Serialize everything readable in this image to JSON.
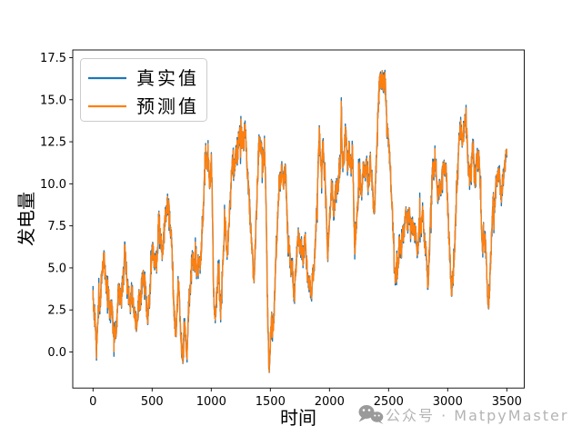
{
  "figure": {
    "background": "#ffffff"
  },
  "chart_data": {
    "type": "line",
    "title": "",
    "xlabel": "时间",
    "ylabel": "发电量",
    "x_ticks": [
      0,
      500,
      1000,
      1500,
      2000,
      2500,
      3000,
      3500
    ],
    "y_tick_labels": [
      "0.0",
      "2.5",
      "5.0",
      "7.5",
      "10.0",
      "12.5",
      "15.0",
      "17.5"
    ],
    "xlim": [
      -171,
      3644
    ],
    "ylim": [
      -2.16,
      17.96
    ],
    "grid": false,
    "legend_position": "upper left",
    "n_points": 3501,
    "series": [
      {
        "name": "真实值",
        "color": "#1f77b4"
      },
      {
        "name": "预测值",
        "color": "#ff7f0e"
      }
    ],
    "generator": {
      "seed": 11,
      "smooth_amp": 0.8,
      "fast_amp": 0.8,
      "spike_prob": 0.07,
      "spike_factor": 2.2,
      "pred_shrink": 0.8,
      "pred_noise": 0.1,
      "ma_window": 9,
      "clip_min": -1.3,
      "clip_max": 17.35
    },
    "trend_keyframes": [
      [
        0,
        3.8
      ],
      [
        15,
        2.6
      ],
      [
        30,
        0.4
      ],
      [
        45,
        2.2
      ],
      [
        60,
        3.4
      ],
      [
        75,
        4.8
      ],
      [
        90,
        5.2
      ],
      [
        105,
        3.6
      ],
      [
        120,
        4.4
      ],
      [
        135,
        3.2
      ],
      [
        150,
        2.6
      ],
      [
        165,
        2.2
      ],
      [
        180,
        1.8
      ],
      [
        195,
        1.4
      ],
      [
        210,
        2.8
      ],
      [
        225,
        3.4
      ],
      [
        240,
        3.2
      ],
      [
        255,
        4.0
      ],
      [
        270,
        5.6
      ],
      [
        285,
        4.6
      ],
      [
        300,
        3.8
      ],
      [
        315,
        2.8
      ],
      [
        330,
        3.4
      ],
      [
        345,
        3.0
      ],
      [
        360,
        2.0
      ],
      [
        375,
        1.4
      ],
      [
        390,
        2.4
      ],
      [
        405,
        3.4
      ],
      [
        420,
        4.6
      ],
      [
        435,
        4.0
      ],
      [
        450,
        3.2
      ],
      [
        465,
        2.6
      ],
      [
        480,
        3.6
      ],
      [
        495,
        5.0
      ],
      [
        510,
        6.0
      ],
      [
        525,
        5.4
      ],
      [
        540,
        5.0
      ],
      [
        555,
        6.8
      ],
      [
        570,
        7.2
      ],
      [
        585,
        6.2
      ],
      [
        600,
        7.4
      ],
      [
        615,
        8.0
      ],
      [
        630,
        9.4
      ],
      [
        645,
        8.6
      ],
      [
        660,
        6.4
      ],
      [
        675,
        4.2
      ],
      [
        690,
        1.8
      ],
      [
        700,
        0.8
      ],
      [
        710,
        2.4
      ],
      [
        720,
        3.6
      ],
      [
        730,
        3.2
      ],
      [
        740,
        2.2
      ],
      [
        750,
        0.6
      ],
      [
        760,
        0.0
      ],
      [
        770,
        1.8
      ],
      [
        780,
        0.6
      ],
      [
        790,
        -0.3
      ],
      [
        800,
        1.4
      ],
      [
        810,
        2.8
      ],
      [
        825,
        3.8
      ],
      [
        840,
        4.8
      ],
      [
        855,
        5.6
      ],
      [
        870,
        5.8
      ],
      [
        885,
        4.8
      ],
      [
        900,
        5.4
      ],
      [
        915,
        6.6
      ],
      [
        930,
        8.4
      ],
      [
        945,
        10.6
      ],
      [
        960,
        11.6
      ],
      [
        975,
        11.2
      ],
      [
        990,
        9.8
      ],
      [
        1000,
        11.0
      ],
      [
        1010,
        8.0
      ],
      [
        1020,
        4.0
      ],
      [
        1030,
        2.6
      ],
      [
        1040,
        3.0
      ],
      [
        1050,
        4.2
      ],
      [
        1060,
        4.6
      ],
      [
        1070,
        3.4
      ],
      [
        1080,
        3.0
      ],
      [
        1090,
        3.6
      ],
      [
        1100,
        5.4
      ],
      [
        1110,
        6.8
      ],
      [
        1120,
        7.0
      ],
      [
        1130,
        5.6
      ],
      [
        1140,
        6.4
      ],
      [
        1150,
        7.6
      ],
      [
        1160,
        9.0
      ],
      [
        1170,
        10.2
      ],
      [
        1180,
        11.0
      ],
      [
        1195,
        11.8
      ],
      [
        1210,
        12.2
      ],
      [
        1225,
        11.4
      ],
      [
        1240,
        12.4
      ],
      [
        1255,
        12.8
      ],
      [
        1270,
        12.2
      ],
      [
        1285,
        12.6
      ],
      [
        1300,
        11.6
      ],
      [
        1315,
        10.4
      ],
      [
        1330,
        8.0
      ],
      [
        1345,
        5.8
      ],
      [
        1360,
        4.8
      ],
      [
        1375,
        7.0
      ],
      [
        1390,
        9.6
      ],
      [
        1405,
        11.6
      ],
      [
        1420,
        12.6
      ],
      [
        1435,
        11.0
      ],
      [
        1450,
        12.2
      ],
      [
        1460,
        10.0
      ],
      [
        1470,
        6.0
      ],
      [
        1480,
        2.0
      ],
      [
        1490,
        -0.9
      ],
      [
        1500,
        0.6
      ],
      [
        1510,
        1.8
      ],
      [
        1520,
        0.4
      ],
      [
        1530,
        2.2
      ],
      [
        1540,
        4.4
      ],
      [
        1550,
        6.2
      ],
      [
        1565,
        8.0
      ],
      [
        1580,
        10.0
      ],
      [
        1595,
        11.2
      ],
      [
        1610,
        10.4
      ],
      [
        1625,
        10.8
      ],
      [
        1640,
        8.6
      ],
      [
        1655,
        6.6
      ],
      [
        1670,
        5.2
      ],
      [
        1685,
        4.2
      ],
      [
        1700,
        3.4
      ],
      [
        1715,
        4.8
      ],
      [
        1730,
        6.6
      ],
      [
        1745,
        6.2
      ],
      [
        1760,
        7.2
      ],
      [
        1775,
        5.8
      ],
      [
        1790,
        6.6
      ],
      [
        1805,
        5.2
      ],
      [
        1820,
        4.4
      ],
      [
        1835,
        3.8
      ],
      [
        1850,
        3.0
      ],
      [
        1865,
        4.8
      ],
      [
        1880,
        6.8
      ],
      [
        1895,
        9.2
      ],
      [
        1905,
        11.0
      ],
      [
        1915,
        13.0
      ],
      [
        1925,
        12.0
      ],
      [
        1935,
        11.2
      ],
      [
        1945,
        12.4
      ],
      [
        1955,
        11.0
      ],
      [
        1965,
        9.0
      ],
      [
        1975,
        7.6
      ],
      [
        1985,
        6.2
      ],
      [
        1995,
        7.0
      ],
      [
        2005,
        8.2
      ],
      [
        2015,
        9.4
      ],
      [
        2025,
        9.0
      ],
      [
        2035,
        8.6
      ],
      [
        2045,
        9.6
      ],
      [
        2055,
        10.4
      ],
      [
        2065,
        10.2
      ],
      [
        2075,
        9.8
      ],
      [
        2085,
        10.6
      ],
      [
        2095,
        12.0
      ],
      [
        2100,
        15.7
      ],
      [
        2105,
        12.5
      ],
      [
        2115,
        11.0
      ],
      [
        2125,
        11.6
      ],
      [
        2135,
        12.4
      ],
      [
        2145,
        11.8
      ],
      [
        2155,
        11.4
      ],
      [
        2165,
        12.6
      ],
      [
        2175,
        11.6
      ],
      [
        2185,
        10.8
      ],
      [
        2195,
        11.8
      ],
      [
        2205,
        9.0
      ],
      [
        2215,
        6.6
      ],
      [
        2225,
        7.6
      ],
      [
        2235,
        8.4
      ],
      [
        2245,
        9.2
      ],
      [
        2255,
        10.4
      ],
      [
        2265,
        9.8
      ],
      [
        2275,
        9.4
      ],
      [
        2285,
        11.0
      ],
      [
        2295,
        10.6
      ],
      [
        2305,
        10.0
      ],
      [
        2315,
        11.4
      ],
      [
        2325,
        10.8
      ],
      [
        2335,
        10.4
      ],
      [
        2345,
        12.0
      ],
      [
        2355,
        10.6
      ],
      [
        2365,
        9.2
      ],
      [
        2375,
        8.4
      ],
      [
        2385,
        9.6
      ],
      [
        2395,
        11.0
      ],
      [
        2405,
        12.8
      ],
      [
        2415,
        14.2
      ],
      [
        2425,
        15.4
      ],
      [
        2435,
        16.2
      ],
      [
        2445,
        16.7
      ],
      [
        2455,
        16.0
      ],
      [
        2465,
        16.5
      ],
      [
        2475,
        15.0
      ],
      [
        2485,
        13.6
      ],
      [
        2495,
        13.9
      ],
      [
        2505,
        12.6
      ],
      [
        2515,
        11.0
      ],
      [
        2525,
        9.0
      ],
      [
        2535,
        7.0
      ],
      [
        2545,
        5.8
      ],
      [
        2555,
        4.8
      ],
      [
        2565,
        4.4
      ],
      [
        2575,
        4.6
      ],
      [
        2585,
        5.2
      ],
      [
        2595,
        6.0
      ],
      [
        2605,
        6.6
      ],
      [
        2615,
        7.0
      ],
      [
        2625,
        7.4
      ],
      [
        2635,
        7.8
      ],
      [
        2645,
        8.2
      ],
      [
        2655,
        7.8
      ],
      [
        2665,
        8.4
      ],
      [
        2675,
        8.2
      ],
      [
        2685,
        7.6
      ],
      [
        2695,
        7.0
      ],
      [
        2705,
        6.6
      ],
      [
        2715,
        7.2
      ],
      [
        2725,
        7.6
      ],
      [
        2735,
        6.4
      ],
      [
        2745,
        5.8
      ],
      [
        2755,
        6.8
      ],
      [
        2765,
        7.6
      ],
      [
        2775,
        8.2
      ],
      [
        2785,
        8.8
      ],
      [
        2795,
        8.0
      ],
      [
        2805,
        6.6
      ],
      [
        2815,
        5.6
      ],
      [
        2825,
        4.6
      ],
      [
        2835,
        4.2
      ],
      [
        2845,
        6.0
      ],
      [
        2855,
        8.0
      ],
      [
        2865,
        9.4
      ],
      [
        2875,
        10.4
      ],
      [
        2885,
        11.2
      ],
      [
        2895,
        11.6
      ],
      [
        2905,
        10.8
      ],
      [
        2915,
        9.6
      ],
      [
        2925,
        9.2
      ],
      [
        2935,
        9.8
      ],
      [
        2945,
        10.4
      ],
      [
        2955,
        11.0
      ],
      [
        2965,
        11.2
      ],
      [
        2975,
        10.6
      ],
      [
        2985,
        10.2
      ],
      [
        2995,
        9.4
      ],
      [
        3005,
        8.0
      ],
      [
        3015,
        6.2
      ],
      [
        3025,
        4.6
      ],
      [
        3035,
        3.4
      ],
      [
        3045,
        4.0
      ],
      [
        3055,
        6.0
      ],
      [
        3065,
        8.2
      ],
      [
        3075,
        9.8
      ],
      [
        3085,
        11.0
      ],
      [
        3095,
        12.0
      ],
      [
        3105,
        12.8
      ],
      [
        3115,
        13.3
      ],
      [
        3125,
        12.6
      ],
      [
        3135,
        12.9
      ],
      [
        3145,
        13.1
      ],
      [
        3155,
        12.7
      ],
      [
        3165,
        12.2
      ],
      [
        3175,
        11.4
      ],
      [
        3185,
        10.6
      ],
      [
        3195,
        11.0
      ],
      [
        3205,
        11.6
      ],
      [
        3215,
        11.9
      ],
      [
        3225,
        11.2
      ],
      [
        3235,
        10.8
      ],
      [
        3245,
        11.8
      ],
      [
        3255,
        11.3
      ],
      [
        3265,
        10.6
      ],
      [
        3275,
        9.6
      ],
      [
        3285,
        8.0
      ],
      [
        3295,
        6.0
      ],
      [
        3305,
        7.2
      ],
      [
        3315,
        6.4
      ],
      [
        3325,
        5.2
      ],
      [
        3335,
        4.2
      ],
      [
        3345,
        3.7
      ],
      [
        3355,
        4.4
      ],
      [
        3365,
        6.0
      ],
      [
        3375,
        7.4
      ],
      [
        3385,
        8.2
      ],
      [
        3395,
        8.8
      ],
      [
        3405,
        9.6
      ],
      [
        3415,
        10.2
      ],
      [
        3425,
        10.5
      ],
      [
        3435,
        10.0
      ],
      [
        3445,
        9.4
      ],
      [
        3455,
        9.8
      ],
      [
        3465,
        10.4
      ],
      [
        3475,
        10.8
      ],
      [
        3485,
        11.3
      ],
      [
        3500,
        11.8
      ]
    ]
  },
  "watermark": {
    "text": "公众号 · MatpyMaster",
    "icon": "wechat",
    "color": "#b4b4b4",
    "icon_color": "#9a9a9a"
  }
}
